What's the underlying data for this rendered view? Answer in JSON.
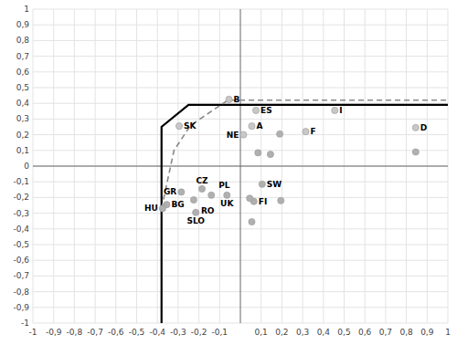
{
  "chart_data": {
    "type": "line",
    "xlim": [
      -1,
      1
    ],
    "ylim": [
      -1,
      1
    ],
    "xticks": [
      -1,
      {
        "value": -0.9,
        "label": "-0,9"
      },
      {
        "value": -0.8,
        "label": "-0,8"
      },
      {
        "value": -0.7,
        "label": "-0,7"
      },
      {
        "value": -0.6,
        "label": "-0,6"
      },
      {
        "value": -0.5,
        "label": "-0,5"
      },
      {
        "value": -0.4,
        "label": "-0,4"
      },
      {
        "value": -0.3,
        "label": "-0,3"
      },
      {
        "value": -0.2,
        "label": "-0,2"
      },
      {
        "value": -0.1,
        "label": "-0,1"
      },
      {
        "value": 0.1,
        "label": "0,1"
      },
      {
        "value": 0.2,
        "label": "0,2"
      },
      {
        "value": 0.3,
        "label": "0,3"
      },
      {
        "value": 0.4,
        "label": "0,4"
      },
      {
        "value": 0.5,
        "label": "0,5"
      },
      {
        "value": 0.6,
        "label": "0,6"
      },
      {
        "value": 0.7,
        "label": "0,7"
      },
      {
        "value": 0.8,
        "label": "0,8"
      },
      {
        "value": 0.9,
        "label": "0,9"
      },
      1
    ],
    "yticks": [
      -1,
      {
        "value": -0.9,
        "label": "-0,9"
      },
      {
        "value": -0.8,
        "label": "-0,8"
      },
      {
        "value": -0.7,
        "label": "-0,7"
      },
      {
        "value": -0.6,
        "label": "-0,6"
      },
      {
        "value": -0.5,
        "label": "-0,5"
      },
      {
        "value": -0.4,
        "label": "-0,4"
      },
      {
        "value": -0.3,
        "label": "-0,3"
      },
      {
        "value": -0.2,
        "label": "-0,2"
      },
      {
        "value": -0.1,
        "label": "-0,1"
      },
      0,
      {
        "value": 0.1,
        "label": "0,1"
      },
      {
        "value": 0.2,
        "label": "0,2"
      },
      {
        "value": 0.3,
        "label": "0,3"
      },
      {
        "value": 0.4,
        "label": "0,4"
      },
      {
        "value": 0.5,
        "label": "0,5"
      },
      {
        "value": 0.6,
        "label": "0,6"
      },
      {
        "value": 0.7,
        "label": "0,7"
      },
      {
        "value": 0.8,
        "label": "0,8"
      },
      {
        "value": 0.9,
        "label": "0,9"
      },
      1
    ],
    "grid": true,
    "series": [
      {
        "type": "line",
        "color": "#000000",
        "line_style": "solid",
        "x": [
          -0.38,
          -0.38,
          -0.25,
          1.0
        ],
        "values": [
          -1.0,
          0.25,
          0.39,
          0.39
        ]
      },
      {
        "type": "line",
        "color": "#888888",
        "line_style": "dashed",
        "x": [
          -0.38,
          -0.32,
          -0.24,
          -0.06,
          1.0
        ],
        "values": [
          -0.27,
          0.1,
          0.26,
          0.42,
          0.42
        ]
      },
      {
        "type": "scatter",
        "color": "#c8c8c8",
        "marker": "circle",
        "x": [
          -0.295,
          -0.055,
          0.075,
          0.455,
          0.055,
          0.015,
          0.315,
          0.845
        ],
        "values": [
          0.255,
          0.425,
          0.355,
          0.355,
          0.255,
          0.2,
          0.22,
          0.245
        ],
        "labels": [
          "SK",
          "B",
          "ES",
          "I",
          "A",
          "NE",
          "F",
          "D"
        ]
      },
      {
        "type": "scatter",
        "color": "#b0b0b0",
        "marker": "circle",
        "x": [
          -0.285,
          -0.185,
          -0.355,
          -0.375,
          -0.225,
          -0.215,
          -0.14,
          -0.065,
          0.105,
          0.065,
          0.145,
          0.19,
          0.085,
          0.045,
          0.055,
          0.845,
          0.195
        ],
        "values": [
          -0.165,
          -0.145,
          -0.245,
          -0.27,
          -0.215,
          -0.295,
          -0.185,
          -0.185,
          -0.115,
          -0.225,
          0.075,
          0.205,
          0.085,
          -0.205,
          -0.355,
          0.09,
          -0.22
        ],
        "labels": [
          "GR",
          "CZ",
          "BG",
          "HU",
          "RO",
          "SLO",
          "PL",
          "UK",
          "SW",
          "FI",
          null,
          null,
          null,
          null,
          null,
          null,
          null
        ]
      }
    ]
  }
}
